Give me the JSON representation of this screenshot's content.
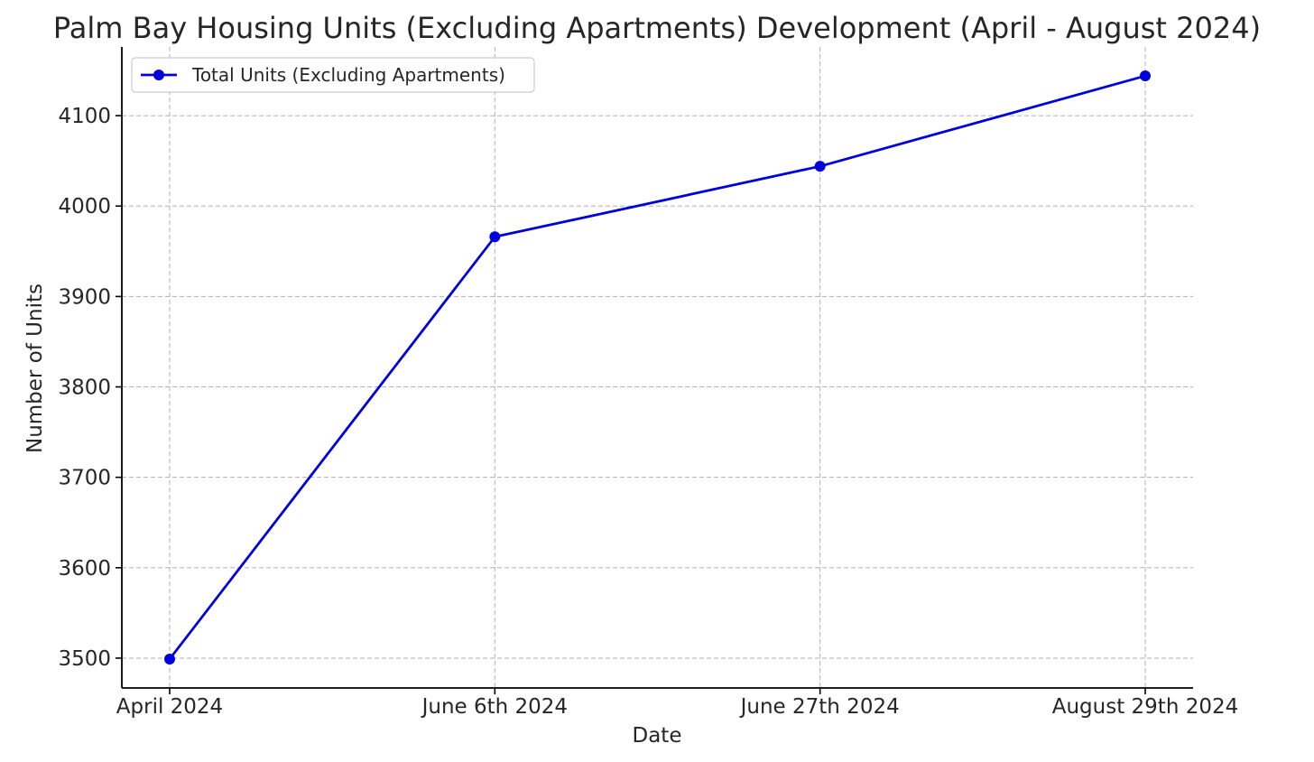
{
  "chart_data": {
    "type": "line",
    "title": "Palm Bay Housing Units (Excluding Apartments) Development (April - August 2024)",
    "xlabel": "Date",
    "ylabel": "Number of Units",
    "categories": [
      "April 2024",
      "June 6th 2024",
      "June 27th 2024",
      "August 29th 2024"
    ],
    "series": [
      {
        "name": "Total Units (Excluding Apartments)",
        "values": [
          3499,
          3966,
          4044,
          4144
        ],
        "color": "#0000dd",
        "marker": "circle"
      }
    ],
    "ylim": [
      3467,
      4176
    ],
    "yticks": [
      3500,
      3600,
      3700,
      3800,
      3900,
      4000,
      4100
    ],
    "grid": true,
    "legend": "top-left"
  }
}
